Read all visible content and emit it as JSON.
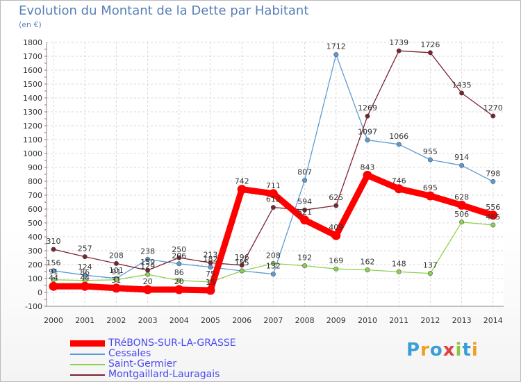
{
  "title": "Evolution du Montant de la Dette par Habitant",
  "subtitle": "(en €)",
  "logo": {
    "letters": [
      "P",
      "r",
      "o",
      "x",
      "i",
      "t",
      "i"
    ],
    "colors": [
      "#3a9fd8",
      "#f0a020",
      "#3a9fd8",
      "#e04040",
      "#8cc63f",
      "#3a9fd8",
      "#f0a020"
    ]
  },
  "chart_data": {
    "type": "line",
    "categories": [
      "2000",
      "2001",
      "2002",
      "2003",
      "2004",
      "2005",
      "2006",
      "2007",
      "2008",
      "2009",
      "2010",
      "2011",
      "2012",
      "2013",
      "2014"
    ],
    "ylim": [
      -100,
      1800
    ],
    "yticks": [
      -100,
      0,
      100,
      200,
      300,
      400,
      500,
      600,
      700,
      800,
      900,
      1000,
      1100,
      1200,
      1300,
      1400,
      1500,
      1600,
      1700,
      1800
    ],
    "grid": true,
    "legend_position": "bottom-left",
    "series": [
      {
        "name": "TRéBONS-SUR-LA-GRASSE",
        "color": "#ff0000",
        "bold": true,
        "values": [
          44,
          44,
          31,
          20,
          20,
          15,
          742,
          711,
          521,
          409,
          843,
          746,
          695,
          628,
          556
        ],
        "labels": [
          "44",
          "44",
          "31",
          "20",
          "20",
          "15",
          "742",
          "711",
          "521",
          "409",
          "843",
          "746",
          "695",
          "628",
          "556"
        ]
      },
      {
        "name": "Cessales",
        "color": "#5b9bd5",
        "bold": false,
        "values": [
          156,
          124,
          101,
          238,
          206,
          182,
          155,
          132,
          807,
          1712,
          1097,
          1066,
          955,
          914,
          798
        ],
        "labels": [
          "156",
          "124",
          "101",
          "238",
          "206",
          "182",
          "155",
          "132",
          "807",
          "1712",
          "1097",
          "1066",
          "955",
          "914",
          "798"
        ]
      },
      {
        "name": "Saint-Germier",
        "color": "#8fd14f",
        "bold": false,
        "values": [
          91,
          86,
          91,
          129,
          86,
          75,
          155,
          208,
          192,
          169,
          162,
          148,
          137,
          506,
          485
        ],
        "labels": [
          "91",
          "86",
          "91",
          "129",
          "86",
          "75",
          "155",
          "208",
          "192",
          "169",
          "162",
          "148",
          "137",
          "506",
          "485"
        ]
      },
      {
        "name": "Montgaillard-Lauragais",
        "color": "#7a2230",
        "bold": false,
        "values": [
          310,
          257,
          208,
          159,
          250,
          213,
          196,
          612,
          594,
          625,
          1269,
          1739,
          1726,
          1435,
          1270
        ],
        "labels": [
          "310",
          "257",
          "208",
          "159",
          "250",
          "213",
          "196",
          "612",
          "594",
          "625",
          "1269",
          "1739",
          "1726",
          "1435",
          "1270"
        ]
      }
    ]
  }
}
